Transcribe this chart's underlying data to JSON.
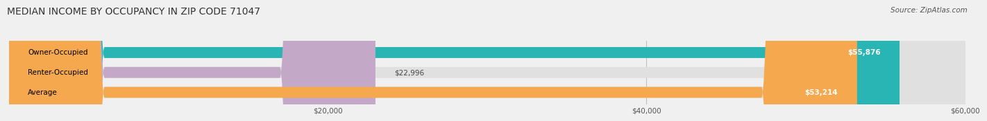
{
  "title": "MEDIAN INCOME BY OCCUPANCY IN ZIP CODE 71047",
  "source": "Source: ZipAtlas.com",
  "categories": [
    "Owner-Occupied",
    "Renter-Occupied",
    "Average"
  ],
  "values": [
    55876,
    22996,
    53214
  ],
  "bar_colors": [
    "#2ab5b5",
    "#c4a8c8",
    "#f5a84e"
  ],
  "value_labels": [
    "$55,876",
    "$22,996",
    "$53,214"
  ],
  "xlim": [
    0,
    60000
  ],
  "xticks": [
    20000,
    40000,
    60000
  ],
  "xtick_labels": [
    "$20,000",
    "$40,000",
    "$60,000"
  ],
  "background_color": "#f0f0f0",
  "bar_background_color": "#e0e0e0",
  "bar_height": 0.55,
  "title_fontsize": 10,
  "source_fontsize": 7.5,
  "label_fontsize": 7.5,
  "value_fontsize": 7.5
}
